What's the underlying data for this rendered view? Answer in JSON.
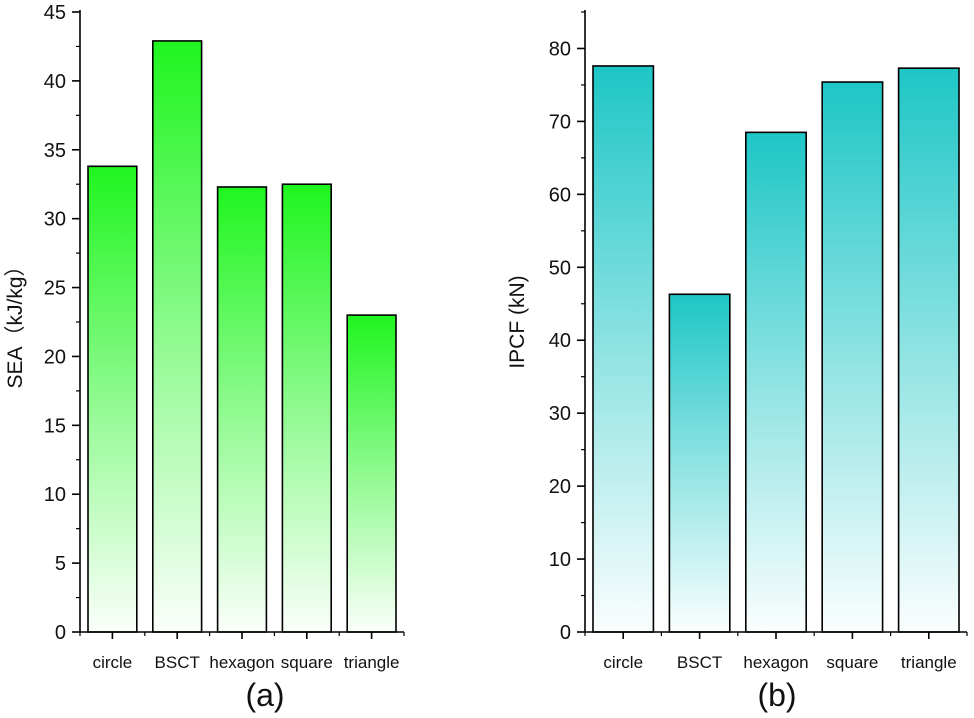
{
  "chart_data": [
    {
      "type": "bar",
      "panel_label": "(a)",
      "categories": [
        "circle",
        "BSCT",
        "hexagon",
        "square",
        "triangle"
      ],
      "values": [
        33.8,
        42.9,
        32.3,
        32.5,
        23.0
      ],
      "title": "",
      "xlabel": "",
      "ylabel": "SEA（kJ/kg）",
      "ylim": [
        0,
        45
      ],
      "yticks": [
        0,
        5,
        10,
        15,
        20,
        25,
        30,
        35,
        40,
        45
      ],
      "grid": false,
      "color": "#1ff51f"
    },
    {
      "type": "bar",
      "panel_label": "(b)",
      "categories": [
        "circle",
        "BSCT",
        "hexagon",
        "square",
        "triangle"
      ],
      "values": [
        77.6,
        46.3,
        68.5,
        75.4,
        77.3
      ],
      "title": "",
      "xlabel": "",
      "ylabel": "IPCF (kN)",
      "ylim": [
        0,
        85
      ],
      "yticks": [
        0,
        10,
        20,
        30,
        40,
        50,
        60,
        70,
        80
      ],
      "grid": false,
      "color": "#1ec6c6"
    }
  ]
}
